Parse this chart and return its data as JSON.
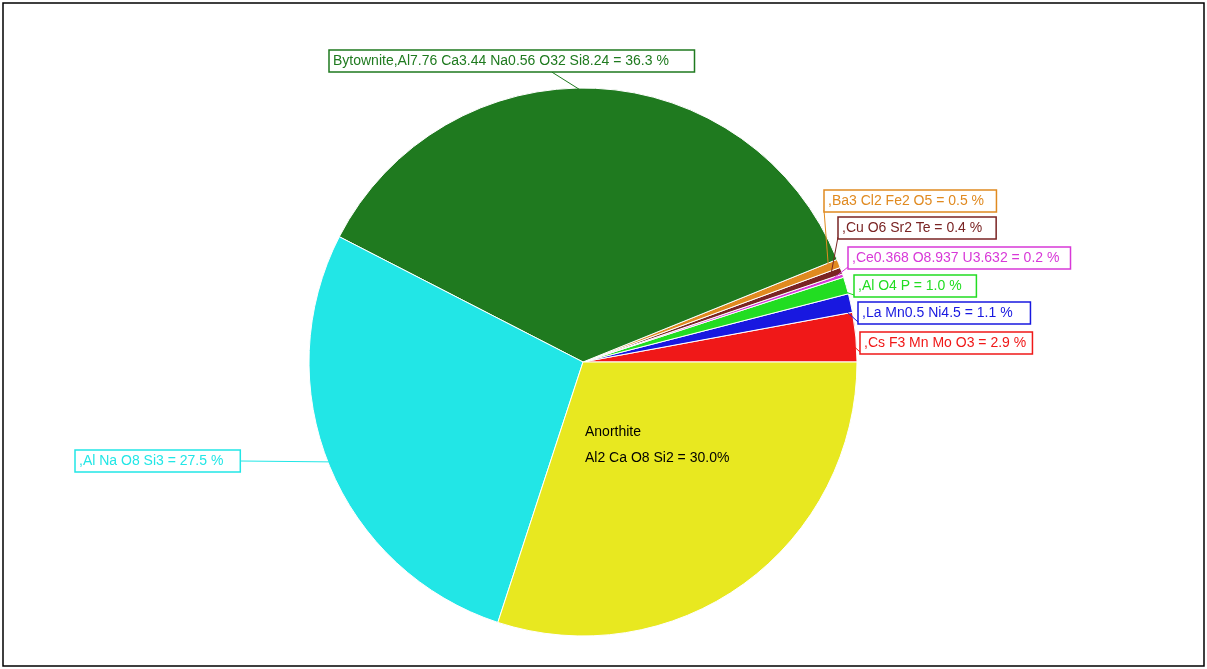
{
  "chart_data": {
    "type": "pie",
    "categories": [
      ",Cs F3 Mn Mo O3 = 2.9 %",
      ",La Mn0.5 Ni4.5 = 1.1 %",
      ",Al O4 P = 1.0 %",
      ",Ce0.368 O8.937 U3.632 = 0.2 %",
      ",Cu O6 Sr2 Te = 0.4 %",
      ",Ba3 Cl2 Fe2 O5 = 0.5 %",
      "Bytownite,Al7.76 Ca3.44 Na0.56 O32 Si8.24 = 36.3 %",
      ",Al Na O8 Si3 = 27.5 %",
      "Anorthite\nAl2 Ca O8 Si2 = 30.0%"
    ],
    "values": [
      2.9,
      1.1,
      1.0,
      0.2,
      0.4,
      0.5,
      36.3,
      27.5,
      30.0
    ],
    "colors": [
      "#f01818",
      "#1818e0",
      "#22dd22",
      "#d838d8",
      "#7a2424",
      "#e08a20",
      "#1f7a1f",
      "#22e6e6",
      "#e8e820"
    ]
  }
}
